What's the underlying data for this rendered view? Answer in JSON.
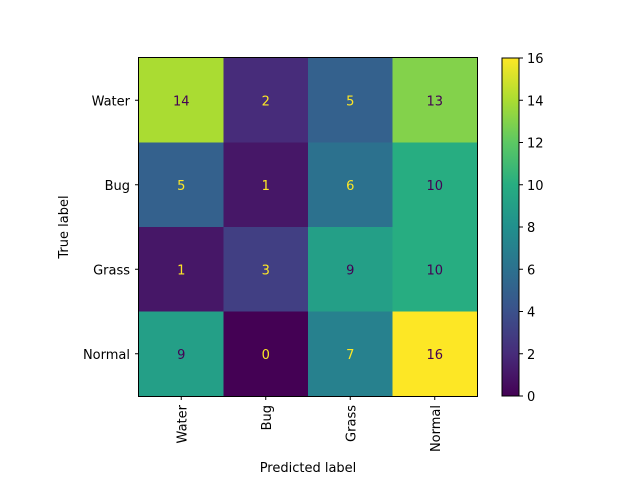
{
  "chart_data": {
    "type": "heatmap",
    "xlabel": "Predicted label",
    "ylabel": "True label",
    "x_categories": [
      "Water",
      "Bug",
      "Grass",
      "Normal"
    ],
    "y_categories": [
      "Water",
      "Bug",
      "Grass",
      "Normal"
    ],
    "values": [
      [
        14,
        2,
        5,
        13
      ],
      [
        5,
        1,
        6,
        10
      ],
      [
        1,
        3,
        9,
        10
      ],
      [
        9,
        0,
        7,
        16
      ]
    ],
    "colormap": "viridis",
    "colorbar": {
      "range": [
        0,
        16
      ],
      "ticks": [
        "0",
        "2",
        "4",
        "6",
        "8",
        "10",
        "12",
        "14",
        "16"
      ]
    },
    "colors": {
      "dark_text": "#440154",
      "light_text": "#fde725"
    }
  }
}
